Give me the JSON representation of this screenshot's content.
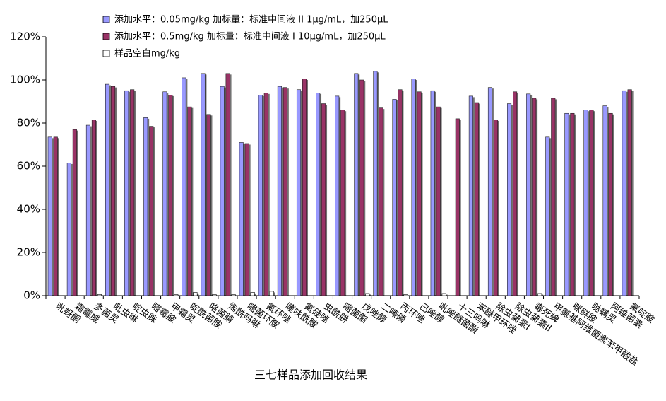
{
  "chart_data": {
    "type": "bar",
    "title": "三七样品添加回收结果",
    "categories": [
      "吡蚜酮",
      "霜霉威",
      "多菌灵",
      "吡虫啉",
      "啶虫脒",
      "嘧霉胺",
      "甲霜灵",
      "啶酰菌胺",
      "咯菌腈",
      "烯酰吗啉",
      "嘧菌环胺",
      "氟环唑",
      "噻呋酰胺",
      "氟硅唑",
      "虫酰肼",
      "嘧菌酯",
      "戊唑醇",
      "二嗪磷",
      "丙环唑",
      "己唑醇",
      "吡唑醚菌酯",
      "十三吗啉",
      "苯醚甲环唑",
      "除虫菊素I",
      "除虫菊素II",
      "毒死蜱",
      "甲氨基阿维菌素苯甲酸盐",
      "咪鲜胺",
      "哒螨灵",
      "阿维菌素",
      "氟啶胺"
    ],
    "series": [
      {
        "name": "添加水平：0.05mg/kg 加标量：标准中间液 II 1μg/mL，加250μL",
        "color": "#9999ff",
        "values": [
          73.5,
          61.5,
          79,
          98,
          95,
          82.5,
          94.5,
          101,
          103,
          97,
          71,
          93,
          97,
          95.5,
          94,
          92.5,
          103,
          104,
          91,
          100.5,
          95,
          null,
          92.5,
          96.5,
          89,
          93.5,
          73.5,
          84.5,
          86,
          88,
          95
        ]
      },
      {
        "name": "添加水平：0.5mg/kg 加标量：标准中间液 I 10μg/mL，加250μL",
        "color": "#993366",
        "values": [
          73.5,
          77,
          81.5,
          97,
          95.5,
          78.5,
          93,
          87.5,
          84,
          103,
          70.5,
          94,
          96.5,
          100.5,
          89,
          86,
          100,
          87,
          95.5,
          94.5,
          87.5,
          82,
          89.5,
          81.5,
          94.5,
          91.5,
          91.5,
          84.5,
          86,
          84.5,
          95.5
        ]
      },
      {
        "name": "样品空白mg/kg",
        "color": "#ffffff",
        "values": [
          0,
          0,
          0.5,
          0,
          0,
          0,
          0.5,
          1.5,
          0.5,
          0.5,
          1.5,
          2,
          0,
          0,
          0,
          0,
          1,
          0,
          0.5,
          0,
          1,
          0,
          0,
          0,
          0,
          1,
          0,
          0,
          0,
          0,
          0
        ]
      }
    ],
    "ylim": [
      0,
      120
    ],
    "yticks": [
      {
        "value": 0,
        "label": "0%"
      },
      {
        "value": 20,
        "label": "20%"
      },
      {
        "value": 40,
        "label": "40%"
      },
      {
        "value": 60,
        "label": "60%"
      },
      {
        "value": 80,
        "label": "80%"
      },
      {
        "value": 100,
        "label": "100%"
      },
      {
        "value": 120,
        "label": "120%"
      }
    ],
    "legend": "top"
  }
}
